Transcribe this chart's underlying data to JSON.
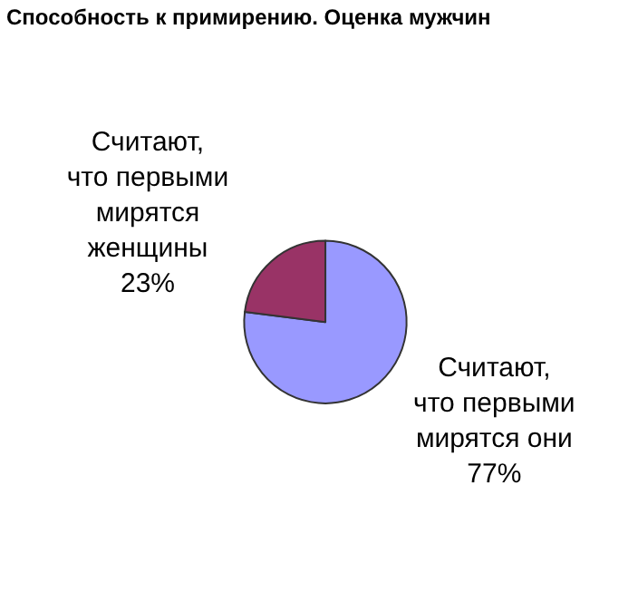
{
  "chart_data": {
    "type": "pie",
    "title": "Способность к примирению. Оценка мужчин",
    "categories": [
      "Считают, что первыми мирятся они",
      "Считают, что первыми мирятся женщины"
    ],
    "values": [
      77,
      23
    ],
    "value_labels": [
      "77%",
      "23%"
    ],
    "colors": [
      "#9999ff",
      "#993366"
    ],
    "legend": false
  }
}
